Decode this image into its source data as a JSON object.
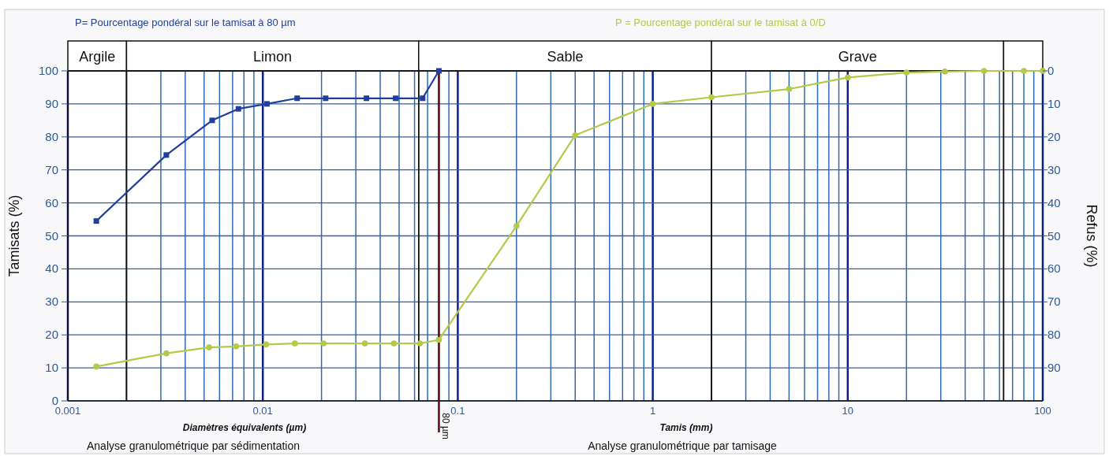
{
  "chart_data": {
    "type": "line",
    "xlabel": "Diamètres équivalents (µm)",
    "ylabel": "Tamisats (%)",
    "y2label": "Refus (%)",
    "annotations": [
      "Tamis (mm)",
      "Analyse granulométrique par sédimentation",
      "Analyse granulométrique par tamisage"
    ],
    "log": "x",
    "xlim": [
      0.001,
      100
    ],
    "xticks": [
      0.001,
      {
        "value": 0.002,
        "label": null
      },
      {
        "value": 0.003,
        "label": null
      },
      {
        "value": 0.004,
        "label": null
      },
      {
        "value": 0.005,
        "label": null
      },
      {
        "value": 0.006,
        "label": null
      },
      {
        "value": 0.007,
        "label": null
      },
      {
        "value": 0.008,
        "label": null
      },
      {
        "value": 0.009,
        "label": null
      },
      0.01,
      {
        "value": 0.02,
        "label": null
      },
      {
        "value": 0.03,
        "label": null
      },
      {
        "value": 0.04,
        "label": null
      },
      {
        "value": 0.05,
        "label": null
      },
      {
        "value": 0.06,
        "label": null
      },
      {
        "value": 0.07,
        "label": null
      },
      {
        "value": 0.08,
        "label": null
      },
      {
        "value": 0.09,
        "label": null
      },
      0.1,
      {
        "value": 0.2,
        "label": null
      },
      {
        "value": 0.3,
        "label": null
      },
      {
        "value": 0.4,
        "label": null
      },
      {
        "value": 0.5,
        "label": null
      },
      {
        "value": 0.6,
        "label": null
      },
      {
        "value": 0.7,
        "label": null
      },
      {
        "value": 0.8,
        "label": null
      },
      {
        "value": 0.9,
        "label": null
      },
      1,
      {
        "value": 2,
        "label": null
      },
      {
        "value": 3,
        "label": null
      },
      {
        "value": 4,
        "label": null
      },
      {
        "value": 5,
        "label": null
      },
      {
        "value": 6,
        "label": null
      },
      {
        "value": 7,
        "label": null
      },
      {
        "value": 8,
        "label": null
      },
      {
        "value": 9,
        "label": null
      },
      10,
      {
        "value": 20,
        "label": null
      },
      {
        "value": 30,
        "label": null
      },
      {
        "value": 40,
        "label": null
      },
      {
        "value": 50,
        "label": null
      },
      {
        "value": 60,
        "label": null
      },
      {
        "value": 70,
        "label": null
      },
      {
        "value": 80,
        "label": null
      },
      {
        "value": 90,
        "label": null
      },
      100
    ],
    "ylim": [
      0,
      100
    ],
    "yticks": [
      0,
      10,
      20,
      30,
      40,
      50,
      60,
      70,
      80,
      90,
      100
    ],
    "y2lim": [
      100,
      0
    ],
    "y2ticks": [
      0,
      10,
      20,
      30,
      40,
      50,
      60,
      70,
      80,
      90
    ],
    "grid": true,
    "legend": "top",
    "bands": [
      {
        "axis": "x",
        "from": 0.001,
        "to": 0.002,
        "label": "Argile",
        "color": "#ffffff"
      },
      {
        "axis": "x",
        "from": 0.002,
        "to": 0.063,
        "label": "Limon",
        "color": "#ffffff"
      },
      {
        "axis": "x",
        "from": 0.063,
        "to": 2,
        "label": "Sable",
        "color": "#ffffff"
      },
      {
        "axis": "x",
        "from": 2,
        "to": 63,
        "label": "Grave",
        "color": "#ffffff"
      },
      {
        "axis": "x",
        "from": 63,
        "to": 100,
        "color": "#ffffff"
      }
    ],
    "ref_lines": [
      {
        "axis": "x",
        "value": 0.08,
        "label": "80 µm",
        "color": "#5a0a0a"
      }
    ],
    "series": [
      {
        "name": "P= Pourcentage pondéral sur le tamisat à 80 µm",
        "color": "#1f3f9f",
        "marker": "square",
        "x": [
          0.0014,
          0.0032,
          0.0055,
          0.0075,
          0.0105,
          0.015,
          0.021,
          0.034,
          0.048,
          0.066,
          0.08
        ],
        "values": [
          54.5,
          74.5,
          85,
          88.5,
          90,
          91.7,
          91.7,
          91.7,
          91.7,
          91.7,
          100
        ]
      },
      {
        "name": "P = Pourcentage pondéral sur le tamisat à 0/D",
        "color": "#b5c84a",
        "marker": "circle",
        "x": [
          0.0014,
          0.0032,
          0.0053,
          0.0073,
          0.0104,
          0.0146,
          0.0205,
          0.0334,
          0.047,
          0.064,
          0.08,
          0.2,
          0.4,
          1,
          2,
          5,
          10,
          20,
          31.5,
          50,
          80,
          100
        ],
        "values": [
          10.4,
          14.4,
          16.2,
          16.5,
          17.1,
          17.4,
          17.4,
          17.4,
          17.4,
          17.4,
          18.5,
          53,
          80.5,
          90,
          92,
          94.5,
          98,
          99.5,
          99.8,
          100,
          100,
          100
        ]
      }
    ]
  }
}
